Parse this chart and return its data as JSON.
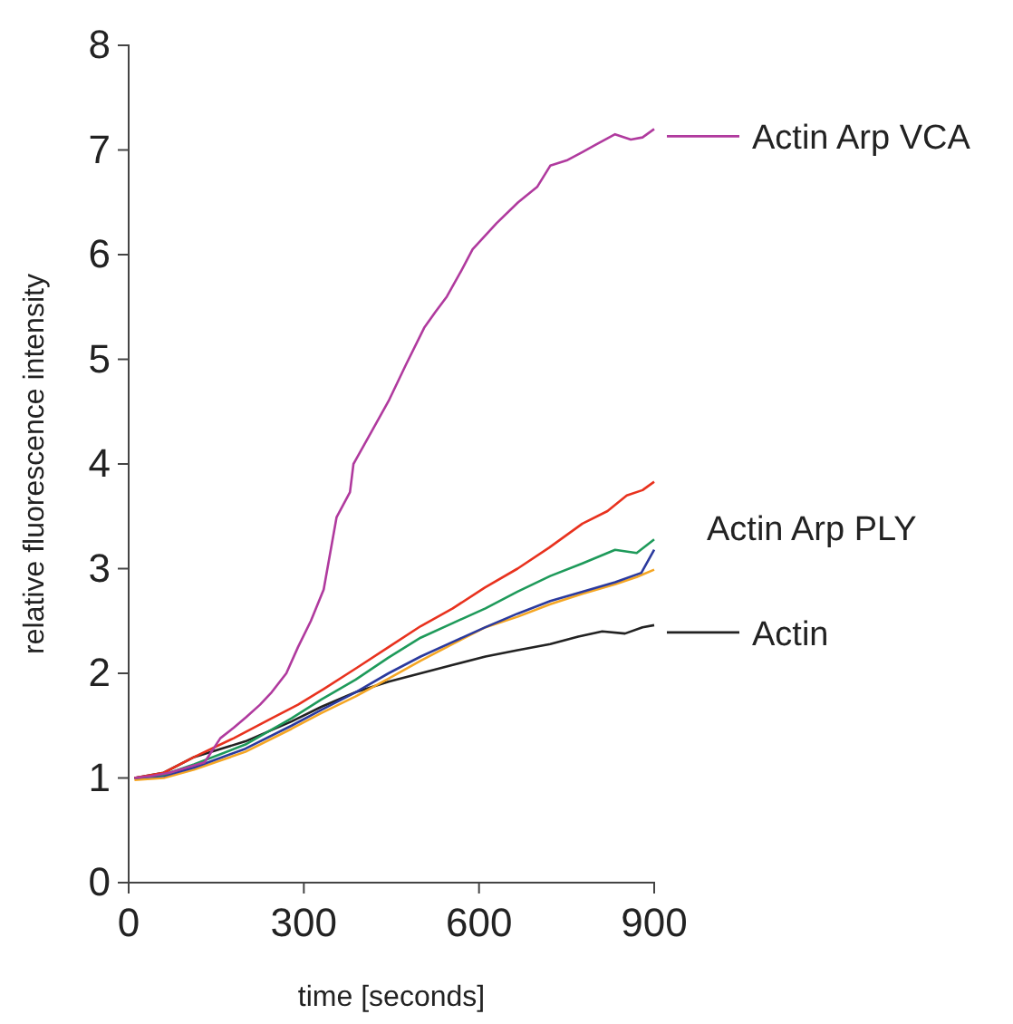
{
  "chart_data": {
    "type": "line",
    "xlabel": "time [seconds]",
    "ylabel": "relative fluorescence intensity",
    "xlim": [
      0,
      900
    ],
    "ylim": [
      0,
      8
    ],
    "xticks": [
      0,
      300,
      600,
      900
    ],
    "yticks": [
      0,
      1,
      2,
      3,
      4,
      5,
      6,
      7,
      8
    ],
    "legend": "right",
    "annotations": [
      "Actin Arp PLY"
    ],
    "series": [
      {
        "name": "Actin Arp VCA",
        "color": "#b03a9e",
        "x": [
          10,
          40,
          70,
          100,
          130,
          157,
          180,
          201,
          225,
          245,
          270,
          290,
          312,
          334,
          356,
          379,
          385,
          415,
          445,
          475,
          506,
          525,
          545,
          570,
          589,
          630,
          667,
          700,
          722,
          750,
          777,
          800,
          833,
          860,
          880,
          900
        ],
        "values": [
          1.0,
          1.02,
          1.05,
          1.1,
          1.15,
          1.38,
          1.48,
          1.58,
          1.7,
          1.82,
          2.0,
          2.25,
          2.5,
          2.8,
          3.49,
          3.73,
          4.0,
          4.3,
          4.6,
          4.95,
          5.3,
          5.45,
          5.6,
          5.85,
          6.05,
          6.3,
          6.5,
          6.65,
          6.85,
          6.9,
          6.98,
          7.05,
          7.15,
          7.1,
          7.12,
          7.2
        ]
      },
      {
        "color": "#e8321e",
        "x": [
          10,
          60,
          112,
          180,
          245,
          290,
          334,
          390,
          445,
          500,
          555,
          610,
          666,
          720,
          777,
          820,
          853,
          880,
          900
        ],
        "values": [
          1.0,
          1.05,
          1.2,
          1.38,
          1.57,
          1.7,
          1.85,
          2.05,
          2.25,
          2.45,
          2.62,
          2.82,
          3.0,
          3.2,
          3.43,
          3.55,
          3.7,
          3.75,
          3.83
        ]
      },
      {
        "color": "#1e9a5a",
        "x": [
          10,
          60,
          112,
          200,
          279,
          330,
          389,
          445,
          500,
          555,
          611,
          666,
          722,
          777,
          833,
          870,
          900
        ],
        "values": [
          1.0,
          1.03,
          1.13,
          1.32,
          1.57,
          1.75,
          1.94,
          2.15,
          2.34,
          2.48,
          2.62,
          2.78,
          2.93,
          3.05,
          3.18,
          3.15,
          3.28
        ]
      },
      {
        "color": "#2b3a9e",
        "x": [
          10,
          60,
          112,
          200,
          279,
          330,
          389,
          445,
          500,
          555,
          611,
          666,
          722,
          777,
          833,
          878,
          900
        ],
        "values": [
          1.0,
          1.02,
          1.1,
          1.28,
          1.5,
          1.65,
          1.82,
          2.0,
          2.16,
          2.3,
          2.44,
          2.57,
          2.69,
          2.78,
          2.87,
          2.96,
          3.18
        ]
      },
      {
        "color": "#f5a623",
        "x": [
          10,
          60,
          112,
          200,
          279,
          330,
          389,
          445,
          500,
          555,
          611,
          666,
          722,
          777,
          833,
          870,
          900
        ],
        "values": [
          0.98,
          1.0,
          1.08,
          1.25,
          1.47,
          1.62,
          1.78,
          1.95,
          2.12,
          2.28,
          2.44,
          2.54,
          2.66,
          2.76,
          2.85,
          2.92,
          2.99
        ]
      },
      {
        "name": "Actin",
        "color": "#222222",
        "x": [
          10,
          60,
          112,
          200,
          279,
          330,
          389,
          445,
          500,
          555,
          611,
          666,
          722,
          770,
          811,
          850,
          880,
          900
        ],
        "values": [
          1.0,
          1.05,
          1.2,
          1.35,
          1.54,
          1.68,
          1.82,
          1.92,
          2.0,
          2.08,
          2.16,
          2.22,
          2.28,
          2.35,
          2.4,
          2.38,
          2.44,
          2.46
        ]
      }
    ]
  }
}
